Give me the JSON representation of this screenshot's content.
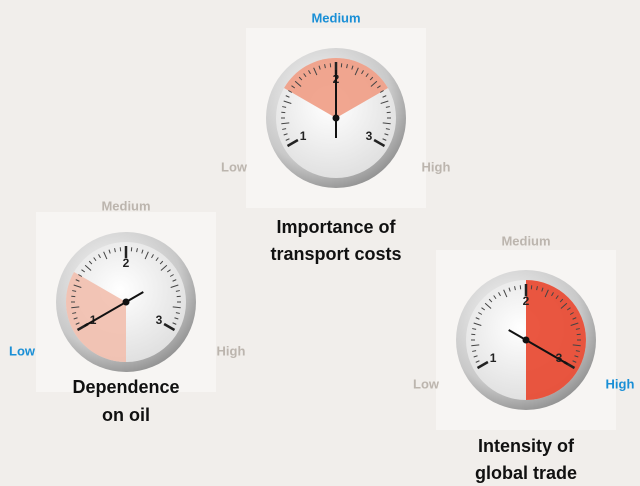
{
  "gauges": [
    {
      "title": [
        "Importance of",
        "transport costs"
      ],
      "low": "Low",
      "medium": "Medium",
      "high": "High",
      "active": "medium",
      "scale": [
        1,
        2,
        3
      ],
      "needle": 2,
      "sector": [
        1.5,
        2.5
      ],
      "sector_color": "#ef9c84"
    },
    {
      "title": [
        "Dependence",
        "on oil"
      ],
      "low": "Low",
      "medium": "Medium",
      "high": "High",
      "active": "low",
      "scale": [
        1,
        2,
        3
      ],
      "needle": 1,
      "sector": [
        0.5,
        1.5
      ],
      "sector_color": "#f2bfae"
    },
    {
      "title": [
        "Intensity of",
        "global trade"
      ],
      "low": "Low",
      "medium": "Medium",
      "high": "High",
      "active": "high",
      "scale": [
        1,
        2,
        3
      ],
      "needle": 3,
      "sector": [
        2,
        3.5
      ],
      "sector_color": "#e8452c"
    }
  ]
}
